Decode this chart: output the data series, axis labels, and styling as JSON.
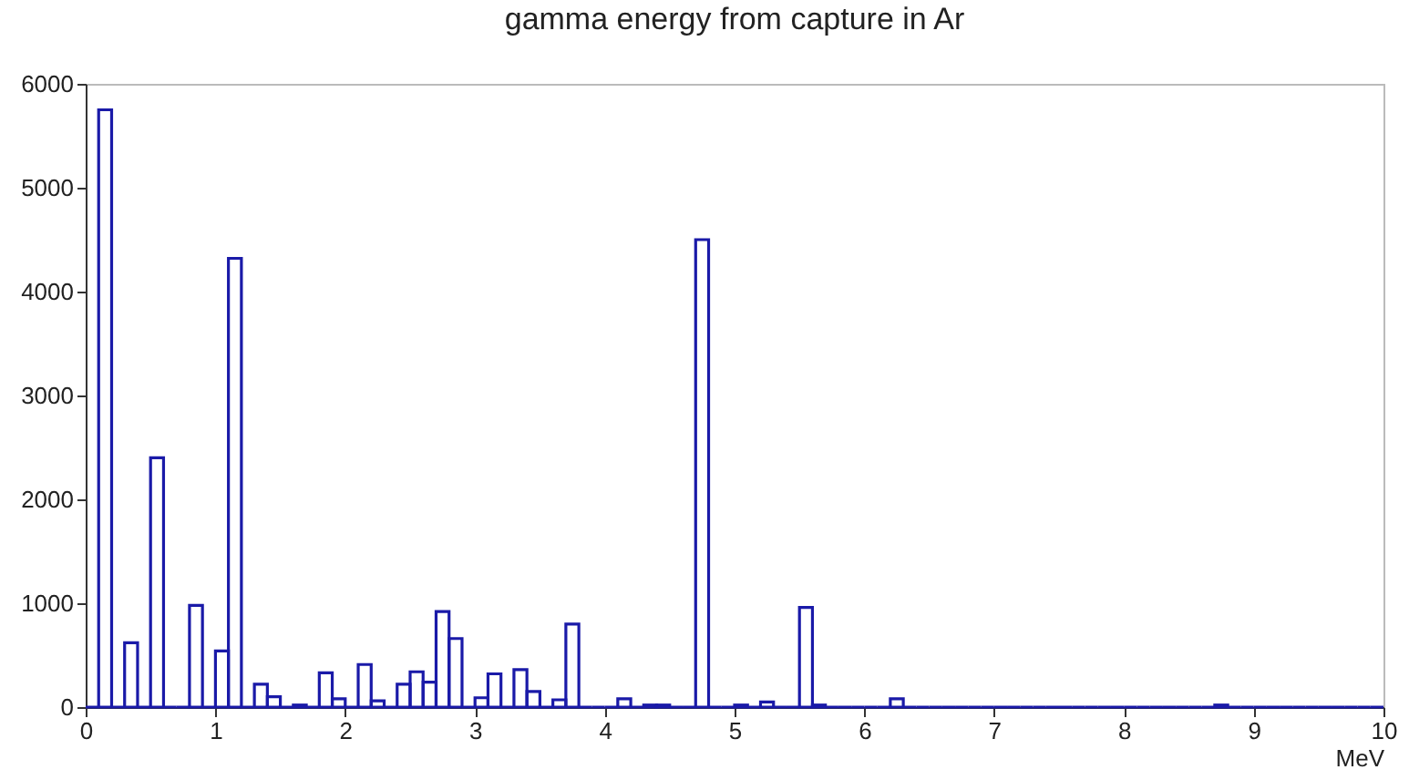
{
  "chart_data": {
    "type": "histogram",
    "title": "gamma energy from capture in Ar",
    "xlabel": "MeV",
    "color": "#1a1aa8",
    "bins": [
      0,
      0.1,
      0.2,
      0.3,
      0.4,
      0.5,
      0.6,
      0.7,
      0.8,
      0.9,
      1,
      1.1,
      1.2,
      1.3,
      1.4,
      1.5,
      1.6,
      1.7,
      1.8,
      1.9,
      2,
      2.1,
      2.2,
      2.3,
      2.4,
      2.5,
      2.6,
      2.7,
      2.8,
      2.9,
      3,
      3.1,
      3.2,
      3.3,
      3.4,
      3.5,
      3.6,
      3.7,
      3.8,
      3.9,
      4,
      4.1,
      4.2,
      4.3,
      4.4,
      4.5,
      4.6,
      4.7,
      4.8,
      4.9,
      5,
      5.1,
      5.2,
      5.3,
      5.4,
      5.5,
      5.6,
      5.7,
      5.8,
      5.9,
      6,
      6.1,
      6.2,
      6.3,
      6.4,
      6.5,
      6.6,
      6.7,
      6.8,
      6.9,
      7,
      7.1,
      7.2,
      7.3,
      7.4,
      7.5,
      7.6,
      7.7,
      7.8,
      7.9,
      8,
      8.1,
      8.2,
      8.3,
      8.4,
      8.5,
      8.6,
      8.7,
      8.8,
      8.9,
      9,
      9.1,
      9.2,
      9.3,
      9.4,
      9.5,
      9.6,
      9.7,
      9.8,
      9.9,
      10
    ],
    "values": [
      0,
      5750,
      0,
      620,
      0,
      2400,
      0,
      0,
      980,
      0,
      540,
      4320,
      0,
      220,
      100,
      0,
      20,
      0,
      330,
      80,
      0,
      410,
      60,
      0,
      220,
      340,
      240,
      920,
      660,
      0,
      90,
      320,
      0,
      360,
      150,
      0,
      70,
      800,
      0,
      0,
      0,
      80,
      0,
      20,
      20,
      0,
      0,
      4500,
      0,
      0,
      20,
      0,
      50,
      0,
      0,
      960,
      20,
      0,
      0,
      0,
      0,
      0,
      80,
      0,
      0,
      0,
      0,
      0,
      0,
      0,
      0,
      0,
      0,
      0,
      0,
      0,
      0,
      0,
      0,
      0,
      0,
      0,
      0,
      0,
      0,
      0,
      0,
      20,
      0,
      0,
      0,
      0,
      0,
      0,
      0,
      0,
      0,
      0,
      0,
      0
    ],
    "xlim": [
      0,
      10
    ],
    "xticks": [
      0,
      1,
      2,
      3,
      4,
      5,
      6,
      7,
      8,
      9,
      10
    ],
    "ylim": [
      0,
      6000
    ],
    "yticks": [
      0,
      1000,
      2000,
      3000,
      4000,
      5000,
      6000
    ]
  }
}
